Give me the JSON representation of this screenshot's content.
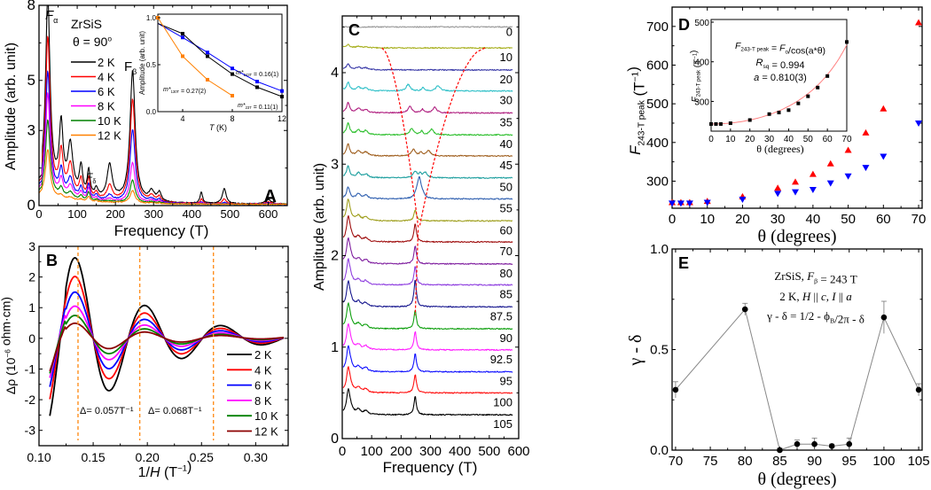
{
  "chart_data": [
    {
      "panel": "A",
      "type": "line",
      "title": "ZrSiS θ = 90°",
      "xlabel": "Frequency (T)",
      "ylabel": "Amplitude (arb. unit)",
      "xlim": [
        0,
        650
      ],
      "ylim": [
        0,
        8
      ],
      "xticks": [
        0,
        100,
        200,
        300,
        400,
        500,
        600
      ],
      "yticks": [
        0,
        3,
        5,
        8
      ],
      "annotations": [
        "Fα",
        "Fβ",
        "Fδ"
      ],
      "legend": {
        "placement": "top-left",
        "entries": [
          "2 K",
          "4 K",
          "6 K",
          "8 K",
          "10 K",
          "12 K"
        ]
      },
      "series": [
        {
          "name": "2 K",
          "color": "#000000",
          "peak_alpha": 7.6,
          "peak_beta": 5.2
        },
        {
          "name": "4 K",
          "color": "#ff0000",
          "peak_alpha": 6.1,
          "peak_beta": 4.1
        },
        {
          "name": "6 K",
          "color": "#0000ff",
          "peak_alpha": 4.8,
          "peak_beta": 2.9
        },
        {
          "name": "8 K",
          "color": "#ff00ff",
          "peak_alpha": 4.0,
          "peak_beta": 1.6
        },
        {
          "name": "10 K",
          "color": "#008000",
          "peak_alpha": 3.0,
          "peak_beta": 0.9
        },
        {
          "name": "12 K",
          "color": "#ff8000",
          "peak_alpha": 1.9,
          "peak_beta": 0.5
        }
      ],
      "inset": {
        "type": "scatter",
        "xlabel": "T (K)",
        "ylabel": "Amplitude (arb. unit)",
        "xlim": [
          2,
          12
        ],
        "ylim": [
          0,
          1.0
        ],
        "xticks": [
          4,
          8,
          12
        ],
        "yticks": [
          "0.0",
          "0.5",
          "1.0"
        ],
        "series": [
          {
            "name": "m*243T = 0.16(1)",
            "color": "#0000ff",
            "x": [
              4,
              6,
              8,
              10,
              12
            ],
            "y": [
              0.79,
              0.63,
              0.46,
              0.32,
              0.22
            ]
          },
          {
            "name": "m*23T = 0.11(1)",
            "color": "#000000",
            "x": [
              4,
              6,
              8,
              10,
              12
            ],
            "y": [
              0.83,
              0.59,
              0.4,
              0.26,
              0.16
            ]
          },
          {
            "name": "m*130T = 0.27(2)",
            "color": "#ff8000",
            "x": [
              2,
              4,
              6,
              8
            ],
            "y": [
              1.0,
              0.59,
              0.34,
              0.17
            ]
          }
        ],
        "labels": {
          "m243": {
            "pre": "m*",
            "sub": "243T",
            "post": " = 0.16(1)"
          },
          "m130": {
            "pre": "m*",
            "sub": "130T",
            "post": " = 0.27(2)"
          },
          "m23": {
            "pre": "m*",
            "sub": "23T",
            "post": " = 0.11(1)"
          }
        }
      }
    },
    {
      "panel": "B",
      "type": "line",
      "xlabel": "1/H (T⁻¹)",
      "ylabel": "Δρ (10⁻⁶ ohm·cm)",
      "xlim": [
        0.1,
        0.33
      ],
      "ylim": [
        -3.5,
        3
      ],
      "xticks": [
        "0.10",
        "0.15",
        "0.20",
        "0.25",
        "0.30"
      ],
      "yticks": [
        -3,
        -2,
        -1,
        0,
        1,
        2,
        3
      ],
      "vlines": [
        0.136,
        0.193,
        0.261
      ],
      "annotations": [
        "Δ= 0.057T⁻¹",
        "Δ= 0.068T⁻¹"
      ],
      "legend": {
        "placement": "bottom-right",
        "entries": [
          "2 K",
          "4 K",
          "6 K",
          "8 K",
          "10 K",
          "12 K"
        ]
      },
      "series": [
        {
          "name": "2 K",
          "color": "#000000",
          "amp": 2.6
        },
        {
          "name": "4 K",
          "color": "#ff0000",
          "amp": 2.0
        },
        {
          "name": "6 K",
          "color": "#0000ff",
          "amp": 1.5
        },
        {
          "name": "8 K",
          "color": "#ff00ff",
          "amp": 1.05
        },
        {
          "name": "10 K",
          "color": "#008000",
          "amp": 0.75
        },
        {
          "name": "12 K",
          "color": "#8b0000",
          "amp": 0.5
        }
      ]
    },
    {
      "panel": "C",
      "type": "line",
      "xlabel": "Frequency (T)",
      "ylabel": "Amplitude (arb. unit)",
      "xlim": [
        0,
        600
      ],
      "ylim": [
        0,
        4.6
      ],
      "xticks": [
        0,
        100,
        200,
        300,
        400,
        500,
        600
      ],
      "yticks": [
        0,
        1,
        2,
        3,
        4
      ],
      "series": [
        {
          "name": "0",
          "color": "#999999",
          "offset": 4.5
        },
        {
          "name": "10",
          "color": "#a8b020",
          "offset": 4.27
        },
        {
          "name": "20",
          "color": "#3a3aa8",
          "offset": 4.03
        },
        {
          "name": "30",
          "color": "#30c0c8",
          "offset": 3.8
        },
        {
          "name": "35",
          "color": "#b02080",
          "offset": 3.56
        },
        {
          "name": "40",
          "color": "#30c030",
          "offset": 3.32
        },
        {
          "name": "45",
          "color": "#a06020",
          "offset": 3.09
        },
        {
          "name": "50",
          "color": "#20a0a0",
          "offset": 2.85
        },
        {
          "name": "55",
          "color": "#3060b0",
          "offset": 2.62
        },
        {
          "name": "60",
          "color": "#a0a020",
          "offset": 2.38
        },
        {
          "name": "70",
          "color": "#a01010",
          "offset": 2.15
        },
        {
          "name": "80",
          "color": "#8020a0",
          "offset": 1.91
        },
        {
          "name": "85",
          "color": "#9040e0",
          "offset": 1.68
        },
        {
          "name": "87.5",
          "color": "#1a1a90",
          "offset": 1.44
        },
        {
          "name": "90",
          "color": "#10a010",
          "offset": 1.2
        },
        {
          "name": "92.5",
          "color": "#ff20ff",
          "offset": 0.97
        },
        {
          "name": "95",
          "color": "#1010ff",
          "offset": 0.73
        },
        {
          "name": "100",
          "color": "#ff1010",
          "offset": 0.5
        },
        {
          "name": "105",
          "color": "#000000",
          "offset": 0.26
        }
      ]
    },
    {
      "panel": "D",
      "type": "scatter",
      "xlabel": "θ (degrees)",
      "ylabel": "F243-T peak (T⁻¹)",
      "xlim": [
        0,
        71
      ],
      "ylim": [
        230,
        750
      ],
      "xticks": [
        0,
        10,
        20,
        30,
        40,
        50,
        60,
        70
      ],
      "yticks": [
        300,
        400,
        500,
        600,
        700
      ],
      "series": [
        {
          "name": "upper",
          "color": "#ff0000",
          "marker": "triangle-up",
          "x": [
            0,
            2.5,
            5,
            10,
            20,
            30,
            35,
            40,
            45,
            50,
            55,
            60,
            70
          ],
          "y": [
            245,
            245,
            245,
            248,
            260,
            282,
            298,
            318,
            345,
            380,
            425,
            487,
            710
          ]
        },
        {
          "name": "lower",
          "color": "#0000ff",
          "marker": "triangle-down",
          "x": [
            0,
            2.5,
            5,
            10,
            20,
            30,
            35,
            40,
            45,
            50,
            55,
            60,
            70
          ],
          "y": [
            243,
            243,
            243,
            245,
            253,
            268,
            272,
            278,
            295,
            313,
            335,
            364,
            450
          ]
        }
      ],
      "inset": {
        "type": "scatter",
        "xlabel": "θ (degrees)",
        "ylabel": "F243-T peak (T⁻¹)",
        "xlim": [
          0,
          70
        ],
        "ylim": [
          225,
          500
        ],
        "xticks": [
          0,
          10,
          20,
          30,
          40,
          50,
          60,
          70
        ],
        "yticks": [
          300,
          400,
          500
        ],
        "x": [
          0,
          2.5,
          5,
          10,
          20,
          30,
          35,
          40,
          45,
          50,
          55,
          60,
          70
        ],
        "y": [
          243,
          243,
          243,
          245,
          253,
          268,
          272,
          278,
          295,
          313,
          335,
          364,
          450
        ],
        "fit": {
          "F0": 243,
          "a": 0.81
        },
        "equation": {
          "lhs": "F",
          "lhs_sub": "243-T peak",
          "mid": " = ",
          "rhs": "F",
          "rhs_sub": "o",
          "rest": "/cos(a*θ)"
        },
        "rsq": {
          "label": "R",
          "sub": "sq",
          "value": " = 0.994"
        },
        "a_label": "a = 0.810(3)"
      }
    },
    {
      "panel": "E",
      "type": "scatter",
      "xlabel": "θ (degrees)",
      "ylabel": "γ - δ",
      "xlim": [
        69.5,
        105.5
      ],
      "ylim": [
        0,
        1.0
      ],
      "xticks": [
        70,
        75,
        80,
        85,
        90,
        95,
        100,
        105
      ],
      "yticks": [
        "0.0",
        "0.5",
        "1.0"
      ],
      "x": [
        70,
        80,
        85,
        87.5,
        90,
        92.5,
        95,
        100,
        105
      ],
      "y": [
        0.3,
        0.7,
        0.0,
        0.03,
        0.03,
        0.02,
        0.03,
        0.66,
        0.3
      ],
      "err": [
        0.04,
        0.03,
        0.01,
        0.02,
        0.03,
        0.01,
        0.03,
        0.08,
        0.03
      ],
      "annotation_lines": [
        "ZrSiS, Fβ = 243 T",
        "2 K, H || c, I || a",
        "γ - δ = 1/2 - ϕB/2π - δ"
      ]
    }
  ],
  "labels": {
    "A": "A",
    "B": "B",
    "C": "C",
    "D": "D",
    "E": "E",
    "a_title1": "ZrSiS",
    "a_title2": "θ = 90°",
    "f_alpha": "F",
    "f_alpha_sub": "α",
    "f_beta": "F",
    "f_beta_sub": "β",
    "f_delta": "F",
    "f_delta_sub": "δ",
    "b_delta1": "Δ= 0.057T⁻¹",
    "b_delta2": "Δ= 0.068T⁻¹",
    "e_line1_pre": "ZrSiS, ",
    "e_line1_F": "F",
    "e_line1_sub": "β",
    "e_line1_post": " = 243 T",
    "e_line2": "2 K, H || c, I || a",
    "e_line3": "γ - δ = 1/2 - ϕ",
    "e_line3_sub": "B",
    "e_line3_post": "/2π - δ"
  }
}
